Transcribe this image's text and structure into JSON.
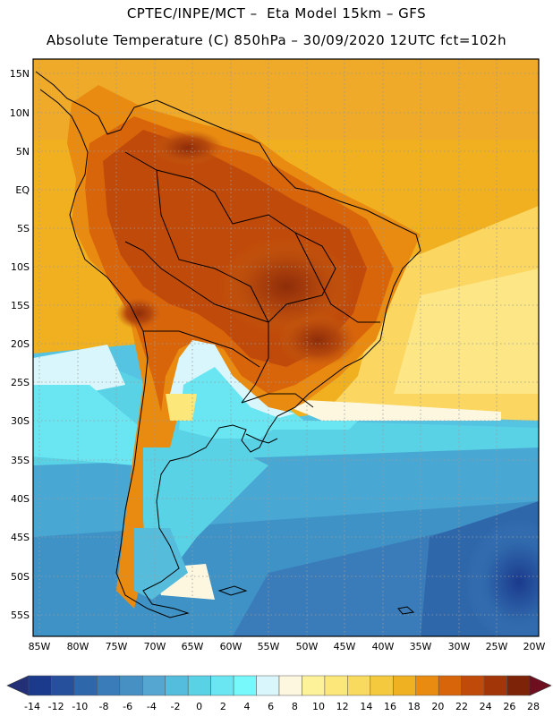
{
  "title_line1": "CPTEC/INPE/MCT –  Eta Model 15km – GFS",
  "title_line2": "Absolute Temperature (C) 850hPa – 30/09/2020 12UTC fct=102h",
  "lat_labels": [
    "15N",
    "10N",
    "5N",
    "EQ",
    "5S",
    "10S",
    "15S",
    "20S",
    "25S",
    "30S",
    "35S",
    "40S",
    "45S",
    "50S",
    "55S"
  ],
  "lon_labels": [
    "85W",
    "80W",
    "75W",
    "70W",
    "65W",
    "60W",
    "55W",
    "50W",
    "45W",
    "40W",
    "35W",
    "30W",
    "25W",
    "20W"
  ],
  "colorbar": {
    "labels": [
      "-14",
      "-12",
      "-10",
      "-8",
      "-6",
      "-4",
      "-2",
      "0",
      "2",
      "4",
      "6",
      "8",
      "10",
      "12",
      "14",
      "16",
      "18",
      "20",
      "22",
      "24",
      "26",
      "28"
    ],
    "colors": [
      "#1b3a8c",
      "#26509c",
      "#2f67ab",
      "#3a7cb9",
      "#4790c4",
      "#55a6d0",
      "#54bcdc",
      "#5ad2e6",
      "#69e6f2",
      "#77f8fa",
      "#d8f6fb",
      "#fdf7e0",
      "#fdf299",
      "#fbe77a",
      "#f8da5e",
      "#f5c93d",
      "#efb122",
      "#e88b10",
      "#d9650b",
      "#c04a0a",
      "#a33609",
      "#7d2308"
    ],
    "under_color": "#233078",
    "over_color": "#6e0f1f"
  }
}
